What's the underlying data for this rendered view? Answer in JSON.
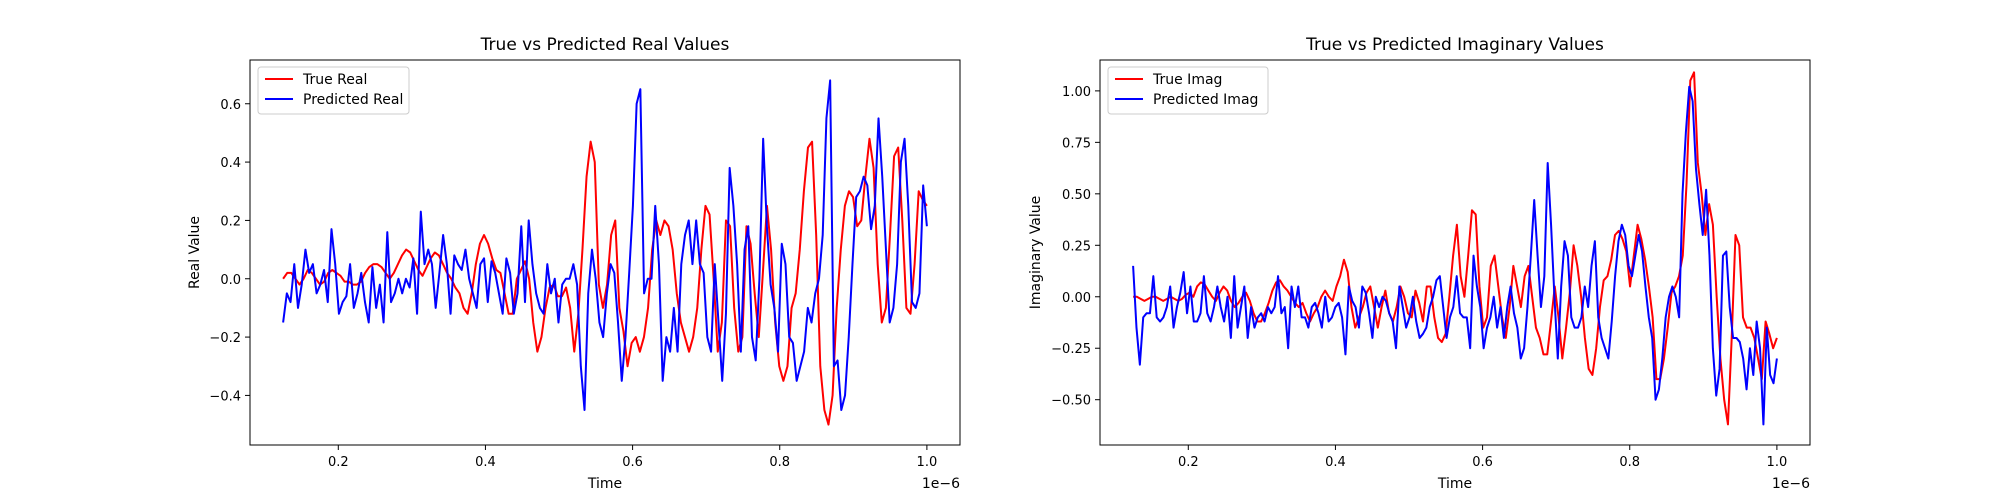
{
  "chart_data": [
    {
      "type": "line",
      "title": "True vs Predicted Real Values",
      "xlabel": "Time",
      "ylabel": "Real Value",
      "x_offset_label": "1e−6",
      "x_range": [
        0.125,
        1.0
      ],
      "x_scale": "1e-6",
      "xlim": [
        0.08,
        1.045
      ],
      "ylim": [
        -0.57,
        0.75
      ],
      "xticks": [
        0.2,
        0.4,
        0.6,
        0.8,
        1.0
      ],
      "xtick_labels": [
        "0.2",
        "0.4",
        "0.6",
        "0.8",
        "1.0"
      ],
      "yticks": [
        -0.4,
        -0.2,
        0.0,
        0.2,
        0.4,
        0.6
      ],
      "ytick_labels": [
        "−0.4",
        "−0.2",
        "0.0",
        "0.2",
        "0.4",
        "0.6"
      ],
      "legend_position": "top-left",
      "grid": false,
      "series": [
        {
          "name": "True Real",
          "color": "#ff0000",
          "values": [
            0.0,
            0.02,
            0.02,
            0.0,
            -0.02,
            0.0,
            0.03,
            0.02,
            0.0,
            -0.02,
            -0.01,
            0.02,
            0.03,
            0.02,
            0.01,
            -0.01,
            -0.01,
            -0.02,
            -0.02,
            -0.01,
            0.02,
            0.04,
            0.05,
            0.05,
            0.04,
            0.02,
            0.0,
            0.02,
            0.05,
            0.08,
            0.1,
            0.09,
            0.06,
            0.03,
            0.01,
            0.04,
            0.07,
            0.09,
            0.08,
            0.05,
            0.02,
            0.0,
            -0.03,
            -0.05,
            -0.1,
            -0.12,
            -0.05,
            0.05,
            0.12,
            0.15,
            0.12,
            0.07,
            0.03,
            0.02,
            -0.05,
            -0.12,
            -0.12,
            0.0,
            0.03,
            0.06,
            0.0,
            -0.15,
            -0.25,
            -0.2,
            -0.1,
            -0.03,
            -0.02,
            -0.06,
            -0.06,
            -0.03,
            -0.1,
            -0.25,
            -0.12,
            0.1,
            0.35,
            0.47,
            0.4,
            -0.02,
            -0.1,
            -0.02,
            0.15,
            0.2,
            -0.1,
            -0.18,
            -0.3,
            -0.22,
            -0.2,
            -0.25,
            -0.2,
            -0.1,
            0.1,
            0.2,
            0.15,
            0.2,
            0.18,
            0.1,
            -0.05,
            -0.15,
            -0.2,
            -0.25,
            -0.2,
            -0.1,
            0.1,
            0.25,
            0.22,
            0.0,
            -0.25,
            -0.15,
            0.2,
            0.18,
            -0.1,
            -0.25,
            -0.2,
            0.18,
            0.12,
            -0.05,
            -0.2,
            0.02,
            0.25,
            0.1,
            -0.15,
            -0.3,
            -0.35,
            -0.3,
            -0.1,
            -0.05,
            0.1,
            0.3,
            0.45,
            0.47,
            0.15,
            -0.3,
            -0.45,
            -0.5,
            -0.4,
            -0.1,
            0.1,
            0.25,
            0.3,
            0.28,
            0.18,
            0.2,
            0.35,
            0.48,
            0.38,
            0.05,
            -0.15,
            -0.1,
            0.15,
            0.42,
            0.45,
            0.2,
            -0.1,
            -0.12,
            0.05,
            0.3,
            0.27,
            0.25
          ]
        },
        {
          "name": "Predicted Real",
          "color": "#0000ff",
          "values": [
            -0.15,
            -0.05,
            -0.08,
            0.05,
            -0.1,
            -0.02,
            0.1,
            0.02,
            0.05,
            -0.05,
            -0.02,
            0.03,
            -0.08,
            0.17,
            0.05,
            -0.12,
            -0.08,
            -0.06,
            0.05,
            -0.1,
            -0.05,
            0.02,
            -0.08,
            -0.15,
            0.04,
            -0.1,
            -0.02,
            -0.15,
            0.16,
            -0.08,
            -0.05,
            0.0,
            -0.05,
            0.0,
            -0.03,
            0.07,
            -0.12,
            0.23,
            0.05,
            0.1,
            0.05,
            -0.1,
            0.02,
            0.15,
            0.05,
            -0.12,
            0.08,
            0.05,
            0.03,
            0.1,
            0.0,
            -0.05,
            -0.1,
            0.05,
            0.07,
            -0.08,
            0.06,
            0.02,
            -0.05,
            -0.12,
            0.07,
            0.02,
            -0.12,
            -0.05,
            0.18,
            -0.08,
            0.2,
            0.05,
            -0.05,
            -0.1,
            -0.12,
            0.05,
            -0.05,
            0.0,
            -0.15,
            -0.02,
            0.0,
            0.0,
            0.05,
            -0.02,
            -0.3,
            -0.45,
            -0.05,
            0.1,
            0.0,
            -0.15,
            -0.2,
            -0.05,
            0.05,
            0.02,
            -0.15,
            -0.35,
            -0.2,
            0.02,
            0.25,
            0.6,
            0.65,
            -0.05,
            0.0,
            0.0,
            0.25,
            0.05,
            -0.35,
            -0.2,
            -0.25,
            -0.1,
            -0.25,
            0.05,
            0.15,
            0.2,
            0.05,
            0.2,
            0.05,
            0.02,
            -0.2,
            -0.25,
            0.05,
            -0.15,
            -0.35,
            -0.12,
            0.38,
            0.25,
            0.05,
            -0.25,
            0.1,
            0.18,
            -0.2,
            -0.28,
            0.0,
            0.48,
            0.18,
            -0.02,
            -0.1,
            -0.25,
            0.12,
            0.05,
            -0.2,
            -0.22,
            -0.35,
            -0.3,
            -0.25,
            -0.1,
            -0.15,
            -0.05,
            0.0,
            0.15,
            0.55,
            0.68,
            -0.3,
            -0.28,
            -0.45,
            -0.4,
            -0.2,
            0.05,
            0.28,
            0.3,
            0.35,
            0.32,
            0.17,
            0.25,
            0.55,
            0.35,
            0.1,
            -0.15,
            -0.1,
            0.05,
            0.4,
            0.48,
            0.25,
            -0.08,
            -0.1,
            -0.05,
            0.32,
            0.18
          ]
        }
      ]
    },
    {
      "type": "line",
      "title": "True vs Predicted Imaginary Values",
      "xlabel": "Time",
      "ylabel": "Imaginary Value",
      "x_offset_label": "1e−6",
      "x_range": [
        0.125,
        1.0
      ],
      "x_scale": "1e-6",
      "xlim": [
        0.08,
        1.045
      ],
      "ylim": [
        -0.72,
        1.15
      ],
      "xticks": [
        0.2,
        0.4,
        0.6,
        0.8,
        1.0
      ],
      "xtick_labels": [
        "0.2",
        "0.4",
        "0.6",
        "0.8",
        "1.0"
      ],
      "yticks": [
        -0.5,
        -0.25,
        0.0,
        0.25,
        0.5,
        0.75,
        1.0
      ],
      "ytick_labels": [
        "−0.50",
        "−0.25",
        "0.00",
        "0.25",
        "0.50",
        "0.75",
        "1.00"
      ],
      "legend_position": "top-left",
      "grid": false,
      "series": [
        {
          "name": "True Imag",
          "color": "#ff0000",
          "values": [
            0.0,
            0.0,
            -0.01,
            -0.02,
            -0.01,
            0.0,
            0.0,
            -0.01,
            -0.02,
            -0.01,
            0.0,
            -0.01,
            -0.02,
            -0.01,
            0.01,
            0.02,
            0.0,
            0.05,
            0.07,
            0.06,
            0.03,
            0.0,
            -0.02,
            0.02,
            0.05,
            0.03,
            -0.02,
            -0.05,
            -0.03,
            0.0,
            0.02,
            -0.02,
            -0.08,
            -0.12,
            -0.12,
            -0.08,
            -0.03,
            0.03,
            0.07,
            0.08,
            0.05,
            0.03,
            0.0,
            -0.03,
            -0.05,
            -0.03,
            -0.08,
            -0.12,
            -0.08,
            -0.05,
            0.0,
            0.03,
            0.0,
            -0.02,
            0.05,
            0.1,
            0.18,
            0.12,
            -0.05,
            -0.15,
            -0.1,
            -0.05,
            0.02,
            0.05,
            -0.05,
            -0.15,
            -0.05,
            0.03,
            -0.08,
            -0.12,
            -0.05,
            0.05,
            0.0,
            -0.08,
            -0.1,
            0.03,
            -0.03,
            -0.12,
            0.05,
            0.05,
            -0.1,
            -0.2,
            -0.22,
            -0.18,
            0.0,
            0.2,
            0.35,
            0.1,
            0.0,
            0.2,
            0.42,
            0.4,
            0.05,
            -0.15,
            -0.1,
            0.15,
            0.2,
            0.05,
            -0.1,
            -0.2,
            -0.05,
            0.15,
            0.05,
            -0.05,
            0.1,
            0.15,
            0.0,
            -0.15,
            -0.2,
            -0.28,
            -0.28,
            -0.12,
            0.05,
            -0.1,
            -0.3,
            -0.15,
            0.02,
            0.25,
            0.15,
            0.0,
            -0.2,
            -0.35,
            -0.38,
            -0.25,
            -0.05,
            0.08,
            0.1,
            0.18,
            0.3,
            0.32,
            0.28,
            0.22,
            0.05,
            0.2,
            0.35,
            0.28,
            0.18,
            0.05,
            -0.1,
            -0.4,
            -0.4,
            -0.3,
            -0.15,
            0.02,
            0.05,
            0.1,
            0.2,
            0.55,
            1.05,
            1.09,
            0.65,
            0.5,
            0.3,
            0.45,
            0.35,
            0.0,
            -0.3,
            -0.5,
            -0.62,
            -0.2,
            0.3,
            0.25,
            -0.1,
            -0.15,
            -0.15,
            -0.2,
            -0.3,
            -0.4,
            -0.12,
            -0.18,
            -0.25,
            -0.2
          ]
        },
        {
          "name": "Predicted Imag",
          "color": "#0000ff",
          "values": [
            0.15,
            -0.15,
            -0.33,
            -0.1,
            -0.08,
            -0.08,
            0.1,
            -0.1,
            -0.12,
            -0.1,
            -0.05,
            0.05,
            -0.15,
            -0.05,
            0.02,
            0.12,
            -0.08,
            0.05,
            -0.12,
            -0.12,
            -0.08,
            0.1,
            -0.08,
            -0.12,
            -0.05,
            0.05,
            -0.05,
            -0.12,
            0.0,
            -0.2,
            0.1,
            -0.15,
            -0.05,
            0.05,
            -0.2,
            -0.05,
            -0.15,
            -0.1,
            -0.08,
            -0.12,
            -0.05,
            -0.08,
            -0.05,
            0.1,
            -0.08,
            -0.05,
            -0.25,
            0.05,
            -0.05,
            0.05,
            -0.1,
            -0.1,
            -0.15,
            -0.05,
            -0.03,
            -0.08,
            -0.15,
            0.0,
            -0.12,
            -0.1,
            -0.05,
            -0.03,
            -0.1,
            -0.28,
            0.05,
            -0.02,
            -0.05,
            -0.15,
            0.05,
            0.02,
            -0.08,
            -0.2,
            0.0,
            -0.05,
            0.0,
            -0.02,
            -0.08,
            -0.12,
            -0.25,
            0.05,
            -0.05,
            -0.15,
            -0.1,
            0.0,
            -0.12,
            -0.2,
            -0.18,
            -0.15,
            -0.05,
            0.0,
            0.08,
            0.1,
            -0.05,
            -0.2,
            -0.1,
            -0.05,
            0.1,
            -0.08,
            -0.1,
            -0.1,
            -0.25,
            0.2,
            0.05,
            -0.05,
            -0.25,
            -0.15,
            -0.1,
            0.0,
            -0.15,
            -0.05,
            -0.2,
            -0.05,
            0.05,
            -0.08,
            -0.15,
            -0.3,
            -0.25,
            -0.05,
            0.2,
            0.47,
            0.2,
            -0.05,
            0.1,
            0.65,
            0.35,
            0.0,
            -0.3,
            0.05,
            0.27,
            0.2,
            -0.1,
            -0.15,
            -0.15,
            -0.1,
            0.05,
            -0.05,
            0.15,
            0.27,
            -0.1,
            -0.2,
            -0.25,
            -0.3,
            -0.12,
            0.1,
            0.27,
            0.35,
            0.3,
            0.15,
            0.1,
            0.2,
            0.3,
            0.22,
            0.05,
            -0.1,
            -0.2,
            -0.5,
            -0.45,
            -0.3,
            -0.1,
            0.0,
            0.05,
            0.0,
            -0.1,
            0.5,
            0.8,
            1.02,
            0.95,
            0.62,
            0.45,
            0.3,
            0.52,
            0.2,
            -0.25,
            -0.48,
            -0.35,
            0.2,
            0.22,
            -0.05,
            -0.2,
            -0.2,
            -0.22,
            -0.3,
            -0.45,
            -0.25,
            -0.38,
            -0.12,
            -0.25,
            -0.62,
            -0.15,
            -0.38,
            -0.42,
            -0.3
          ]
        }
      ]
    }
  ]
}
